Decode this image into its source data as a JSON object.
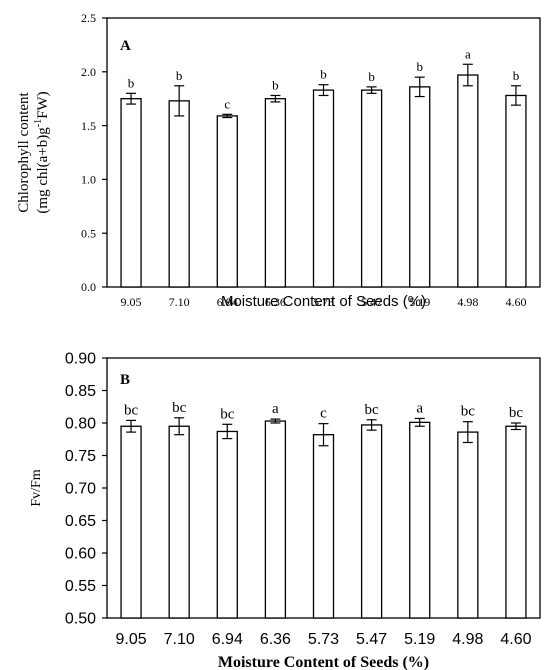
{
  "chart_data": [
    {
      "type": "bar",
      "panel_label": "A",
      "categories": [
        "9.05",
        "7.10",
        "6.94",
        "6.36",
        "5.73",
        "5.47",
        "5.19",
        "4.98",
        "4.60"
      ],
      "values": [
        1.75,
        1.73,
        1.59,
        1.75,
        1.83,
        1.83,
        1.86,
        1.97,
        1.78
      ],
      "errors": [
        0.05,
        0.14,
        0.015,
        0.03,
        0.05,
        0.03,
        0.09,
        0.1,
        0.09
      ],
      "letters": [
        "b",
        "b",
        "c",
        "b",
        "b",
        "b",
        "b",
        "a",
        "b"
      ],
      "ylabel_line1": "Chlorophyll content",
      "ylabel_line2": "(mg chl(a+b)g",
      "ylabel_sup": "-1",
      "ylabel_tail": "FW)",
      "xlabel": "Moisture Content of Seeds (%)",
      "ylim": [
        0,
        2.5
      ],
      "yticks": [
        "0.0",
        "0.5",
        "1.0",
        "1.5",
        "2.0",
        "2.5"
      ],
      "grid": false,
      "bar_fill": "#ffffff",
      "stroke_color": "#000000"
    },
    {
      "type": "bar",
      "panel_label": "B",
      "categories": [
        "9.05",
        "7.10",
        "6.94",
        "6.36",
        "5.73",
        "5.47",
        "5.19",
        "4.98",
        "4.60"
      ],
      "values": [
        0.795,
        0.795,
        0.787,
        0.803,
        0.782,
        0.797,
        0.801,
        0.786,
        0.795
      ],
      "errors": [
        0.009,
        0.013,
        0.011,
        0.003,
        0.017,
        0.008,
        0.006,
        0.016,
        0.005
      ],
      "letters": [
        "bc",
        "bc",
        "bc",
        "a",
        "c",
        "bc",
        "a",
        "bc",
        "bc"
      ],
      "ylabel": "Fv/Fm",
      "xlabel": "Moisture Content of Seeds (%)",
      "ylim": [
        0.5,
        0.9
      ],
      "yticks": [
        "0.50",
        "0.55",
        "0.60",
        "0.65",
        "0.70",
        "0.75",
        "0.80",
        "0.85",
        "0.90"
      ],
      "grid": false,
      "bar_fill": "#ffffff",
      "stroke_color": "#000000"
    }
  ]
}
